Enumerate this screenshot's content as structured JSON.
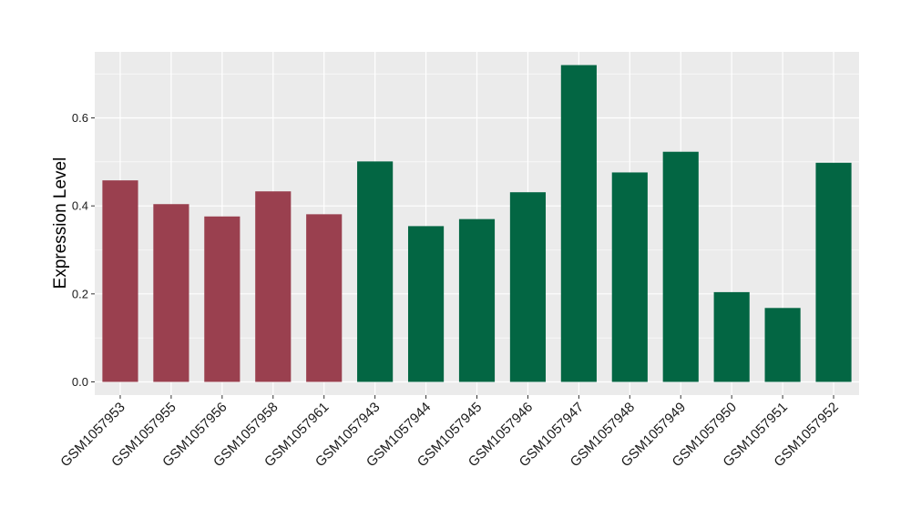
{
  "chart_data": {
    "type": "bar",
    "title": "",
    "xlabel": "",
    "ylabel": "Expression Level",
    "ylim": [
      -0.03,
      0.75
    ],
    "yticks": [
      "0.0",
      "0.2",
      "0.4",
      "0.6"
    ],
    "grid": true,
    "categories": [
      "GSM1057953",
      "GSM1057955",
      "GSM1057956",
      "GSM1057958",
      "GSM1057961",
      "GSM1057943",
      "GSM1057944",
      "GSM1057945",
      "GSM1057946",
      "GSM1057947",
      "GSM1057948",
      "GSM1057949",
      "GSM1057950",
      "GSM1057951",
      "GSM1057952"
    ],
    "values": [
      0.458,
      0.404,
      0.376,
      0.433,
      0.381,
      0.501,
      0.354,
      0.37,
      0.431,
      0.72,
      0.476,
      0.523,
      0.204,
      0.168,
      0.498
    ],
    "group_of_bar": [
      0,
      0,
      0,
      0,
      0,
      1,
      1,
      1,
      1,
      1,
      1,
      1,
      1,
      1,
      1
    ],
    "group_colors": [
      "#9a404f",
      "#036643"
    ],
    "panel_color": "#ebebeb",
    "grid_color": "#ffffff"
  }
}
